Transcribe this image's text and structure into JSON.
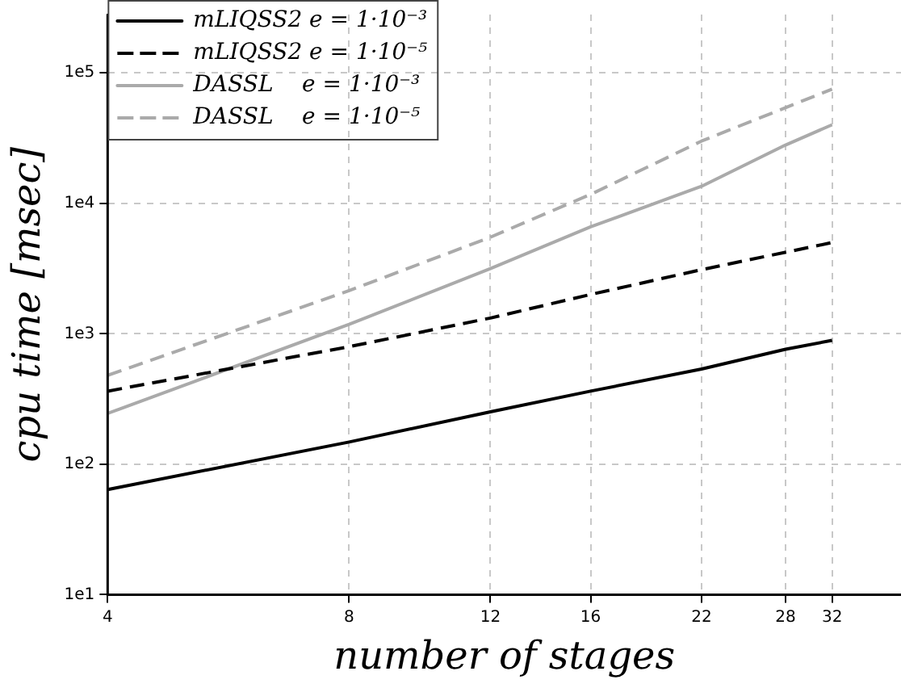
{
  "chart_data": {
    "type": "line",
    "xlabel": "number of stages",
    "ylabel": "cpu time [msec]",
    "x": [
      4,
      8,
      12,
      16,
      22,
      28,
      32
    ],
    "series": [
      {
        "name": "mLIQSS2 e = 1·10⁻³",
        "color": "#000000",
        "line_style": "solid",
        "values": [
          64,
          148,
          252,
          363,
          537,
          760,
          890
        ]
      },
      {
        "name": "mLIQSS2 e = 1·10⁻⁵",
        "color": "#000000",
        "line_style": "dashed",
        "values": [
          363,
          796,
          1320,
          2000,
          3100,
          null,
          5000
        ]
      },
      {
        "name": "DASSL    e = 1·10⁻³",
        "color": "#aaaaaa",
        "line_style": "solid",
        "values": [
          245,
          1180,
          3160,
          6600,
          13500,
          28000,
          40000
        ]
      },
      {
        "name": "DASSL    e = 1·10⁻⁵",
        "color": "#aaaaaa",
        "line_style": "dashed",
        "values": [
          480,
          2140,
          5500,
          11700,
          30000,
          null,
          75000
        ]
      }
    ],
    "log": "xy",
    "xlim": [
      4,
      39
    ],
    "ylim": [
      10,
      280000
    ],
    "xticks": [
      4,
      8,
      12,
      16,
      22,
      28,
      32
    ],
    "yticks": [
      {
        "value": 10,
        "label": "1e1"
      },
      {
        "value": 100,
        "label": "1e2"
      },
      {
        "value": 1000,
        "label": "1e3"
      },
      {
        "value": 10000,
        "label": "1e4"
      },
      {
        "value": 100000,
        "label": "1e5"
      }
    ],
    "grid": true,
    "legend": "top left",
    "marker": "none"
  }
}
